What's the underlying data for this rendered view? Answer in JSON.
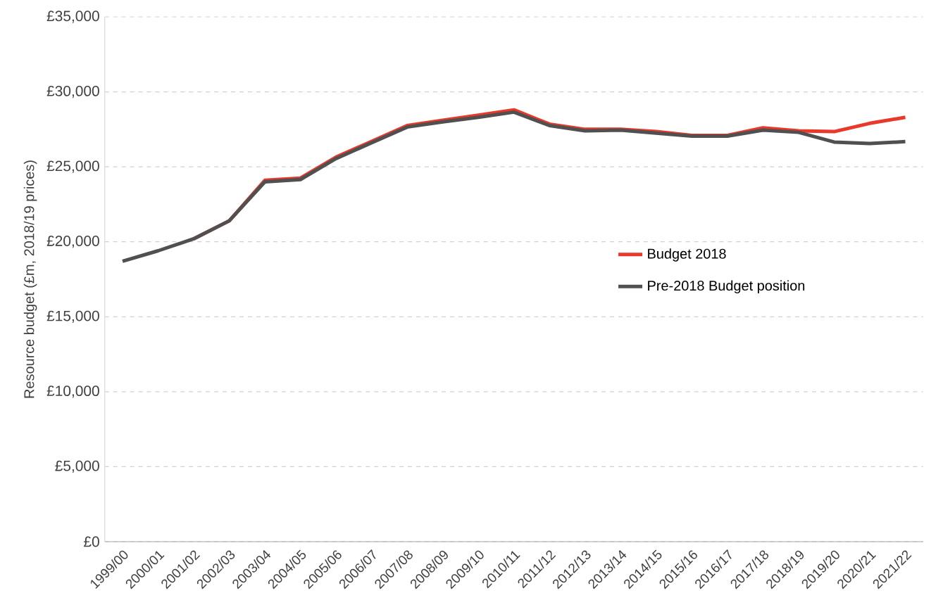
{
  "chart_data": {
    "type": "line",
    "ylabel": "Resource budget (£m, 2018/19 prices)",
    "categories": [
      "1999/00",
      "2000/01",
      "2001/02",
      "2002/03",
      "2003/04",
      "2004/05",
      "2005/06",
      "2006/07",
      "2007/08",
      "2008/09",
      "2009/10",
      "2010/11",
      "2011/12",
      "2012/13",
      "2013/14",
      "2014/15",
      "2015/16",
      "2016/17",
      "2017/18",
      "2018/19",
      "2019/20",
      "2020/21",
      "2021/22"
    ],
    "series": [
      {
        "name": "Budget 2018",
        "color": "#e8392a",
        "values": [
          null,
          null,
          20200,
          21400,
          24100,
          24250,
          25650,
          26700,
          27750,
          28100,
          28450,
          28800,
          27850,
          27500,
          27500,
          27350,
          27100,
          27100,
          27600,
          27400,
          27350,
          27900,
          28300
        ]
      },
      {
        "name": "Pre-2018 Budget position",
        "color": "#505050",
        "values": [
          18700,
          19400,
          20200,
          21400,
          24000,
          24150,
          25550,
          26600,
          27650,
          28000,
          28300,
          28650,
          27750,
          27400,
          27450,
          27250,
          27050,
          27050,
          27450,
          27300,
          26650,
          26550,
          26680
        ]
      }
    ],
    "ylim": [
      0,
      35000
    ],
    "yticks": [
      {
        "value": 0,
        "label": "£0"
      },
      {
        "value": 5000,
        "label": "£5,000"
      },
      {
        "value": 10000,
        "label": "£10,000"
      },
      {
        "value": 15000,
        "label": "£15,000"
      },
      {
        "value": 20000,
        "label": "£20,000"
      },
      {
        "value": 25000,
        "label": "£25,000"
      },
      {
        "value": 30000,
        "label": "£30,000"
      },
      {
        "value": 35000,
        "label": "£35,000"
      }
    ],
    "grid": "y",
    "legend": "right",
    "marker": "none",
    "line_style": "solid"
  }
}
